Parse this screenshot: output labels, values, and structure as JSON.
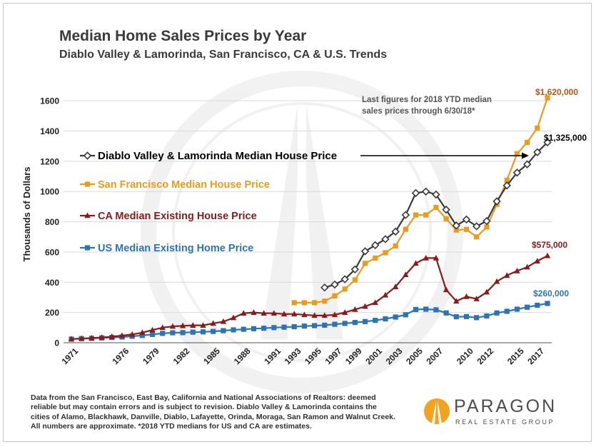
{
  "title": "Median Home Sales Prices by Year",
  "subtitle": "Diablo Valley & Lamorinda, San Francisco, CA & U.S. Trends",
  "footer": "Data from the San Francisco, East Bay, California and National Associations of Realtors:  deemed reliable but may contain errors and is subject to revision. Diablo Valley & Lamorinda contains the cities of Alamo, Blackhawk, Danville, Diablo, Lafayette, Orinda, Moraga, San Ramon and Walnut Creek. All numbers are approximate.  *2018 YTD medians for US and CA are estimates.",
  "logo": {
    "word": "PARAGON",
    "tagline": "REAL ESTATE GROUP"
  },
  "chart_data": {
    "type": "line",
    "ylabel": "Thousands of Dollars",
    "ylim": [
      0,
      1700
    ],
    "yticks": [
      0,
      200,
      400,
      600,
      800,
      1000,
      1200,
      1400,
      1600
    ],
    "xlim": [
      1971,
      2018
    ],
    "xtick_labels": [
      "1971",
      "1976",
      "1979",
      "1982",
      "1985",
      "1988",
      "1991",
      "1993",
      "1995",
      "1997",
      "1999",
      "2001",
      "2003",
      "2005",
      "2007",
      "2010",
      "2012",
      "2015",
      "2017"
    ],
    "grid": "horizontal",
    "annotations": {
      "note": [
        "Last figures for 2018 YTD median",
        "sales prices through 6/30/18*"
      ],
      "sf_last": "$1,620,000",
      "dv_last": "$1,325,000",
      "ca_last": "$575,000",
      "us_last": "$260,000"
    },
    "series": [
      {
        "name": "Diablo Valley & Lamorinda Median House Price",
        "color": "#3a3a3a",
        "marker": "diamond-open",
        "x": [
          1996,
          1997,
          1998,
          1999,
          2000,
          2001,
          2002,
          2003,
          2004,
          2005,
          2006,
          2007,
          2008,
          2009,
          2010,
          2011,
          2012,
          2013,
          2014,
          2015,
          2016,
          2017,
          2018
        ],
        "values": [
          365,
          385,
          420,
          485,
          605,
          645,
          685,
          735,
          845,
          990,
          1000,
          980,
          880,
          775,
          815,
          770,
          805,
          935,
          1040,
          1125,
          1180,
          1260,
          1325
        ]
      },
      {
        "name": "San Francisco Median House Price",
        "color": "#ee9a1a",
        "marker": "square",
        "x": [
          1993,
          1994,
          1995,
          1996,
          1997,
          1998,
          1999,
          2000,
          2001,
          2002,
          2003,
          2004,
          2005,
          2006,
          2007,
          2008,
          2009,
          2010,
          2011,
          2012,
          2013,
          2014,
          2015,
          2016,
          2017,
          2018
        ],
        "values": [
          265,
          265,
          265,
          275,
          310,
          355,
          415,
          525,
          560,
          595,
          640,
          750,
          845,
          845,
          895,
          820,
          745,
          750,
          700,
          765,
          915,
          1075,
          1250,
          1325,
          1420,
          1620
        ]
      },
      {
        "name": "CA Median Existing House Price",
        "color": "#8b1a1a",
        "marker": "triangle",
        "x": [
          1971,
          1972,
          1973,
          1974,
          1975,
          1976,
          1977,
          1978,
          1979,
          1980,
          1981,
          1982,
          1983,
          1984,
          1985,
          1986,
          1987,
          1988,
          1989,
          1990,
          1991,
          1992,
          1993,
          1994,
          1995,
          1996,
          1997,
          1998,
          1999,
          2000,
          2001,
          2002,
          2003,
          2004,
          2005,
          2006,
          2007,
          2008,
          2009,
          2010,
          2011,
          2012,
          2013,
          2014,
          2015,
          2016,
          2017,
          2018
        ],
        "values": [
          25,
          28,
          31,
          35,
          40,
          47,
          55,
          67,
          84,
          100,
          108,
          112,
          115,
          115,
          128,
          140,
          165,
          195,
          200,
          195,
          195,
          190,
          190,
          185,
          180,
          180,
          185,
          200,
          220,
          240,
          265,
          315,
          370,
          450,
          525,
          560,
          560,
          350,
          275,
          305,
          290,
          335,
          405,
          445,
          475,
          500,
          540,
          575
        ]
      },
      {
        "name": "US Median Existing Home Price",
        "color": "#2d74b5",
        "marker": "square",
        "x": [
          1971,
          1972,
          1973,
          1974,
          1975,
          1976,
          1977,
          1978,
          1979,
          1980,
          1981,
          1982,
          1983,
          1984,
          1985,
          1986,
          1987,
          1988,
          1989,
          1990,
          1991,
          1992,
          1993,
          1994,
          1995,
          1996,
          1997,
          1998,
          1999,
          2000,
          2001,
          2002,
          2003,
          2004,
          2005,
          2006,
          2007,
          2008,
          2009,
          2010,
          2011,
          2012,
          2013,
          2014,
          2015,
          2016,
          2017,
          2018
        ],
        "values": [
          24,
          27,
          29,
          32,
          35,
          38,
          43,
          48,
          55,
          62,
          66,
          67,
          70,
          72,
          75,
          80,
          85,
          89,
          93,
          96,
          100,
          103,
          106,
          110,
          113,
          116,
          122,
          128,
          134,
          140,
          148,
          158,
          170,
          185,
          220,
          222,
          218,
          197,
          172,
          173,
          166,
          177,
          197,
          208,
          222,
          235,
          248,
          260
        ]
      }
    ]
  }
}
